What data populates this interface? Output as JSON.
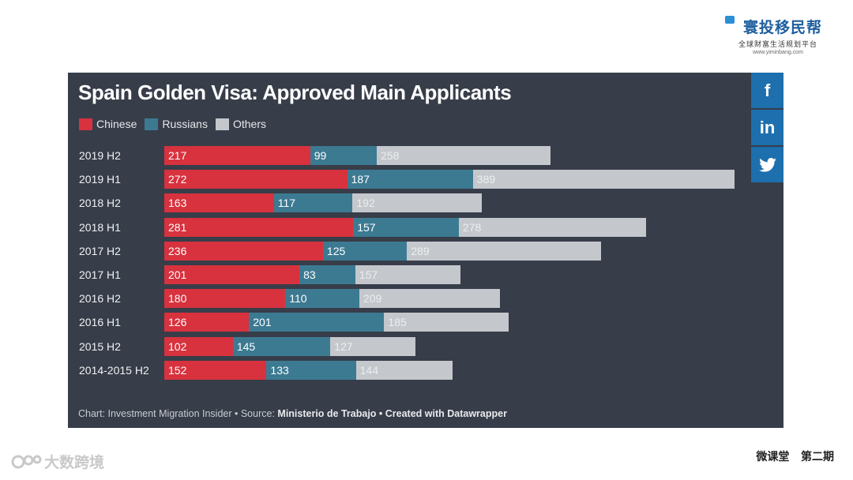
{
  "logo": {
    "name": "寰投移民帮",
    "subtitle": "全球财富生活规划平台",
    "url": "www.yiminbang.com"
  },
  "social": [
    {
      "label": "f",
      "icon": "facebook-icon"
    },
    {
      "label": "in",
      "icon": "linkedin-icon"
    },
    {
      "label": "🐦",
      "icon": "twitter-icon"
    }
  ],
  "watermark": "大数跨境",
  "footer_right": "微课堂   第二期",
  "source": {
    "prefix": "Chart: Investment Migration Insider • Source: ",
    "bold": "Ministerio de Trabajo • Created with Datawrapper"
  },
  "chart_data": {
    "type": "bar",
    "orientation": "horizontal",
    "stacked": true,
    "title": "Spain Golden Visa: Approved Main Applicants",
    "legend_position": "top-left",
    "categories": [
      "2019 H2",
      "2019 H1",
      "2018 H2",
      "2018 H1",
      "2017 H2",
      "2017 H1",
      "2016 H2",
      "2016 H1",
      "2015 H2",
      "2014-2015 H2"
    ],
    "series": [
      {
        "name": "Chinese",
        "color": "#d7323e",
        "text_color": "#ffffff",
        "values": [
          217,
          272,
          163,
          281,
          236,
          201,
          180,
          126,
          102,
          152
        ]
      },
      {
        "name": "Russians",
        "color": "#3c7a92",
        "text_color": "#ffffff",
        "values": [
          99,
          187,
          117,
          157,
          125,
          83,
          110,
          201,
          145,
          133
        ]
      },
      {
        "name": "Others",
        "color": "#c4c8cc",
        "text_color": "#eceef0",
        "values": [
          258,
          389,
          192,
          278,
          289,
          157,
          209,
          185,
          127,
          144
        ]
      }
    ]
  }
}
